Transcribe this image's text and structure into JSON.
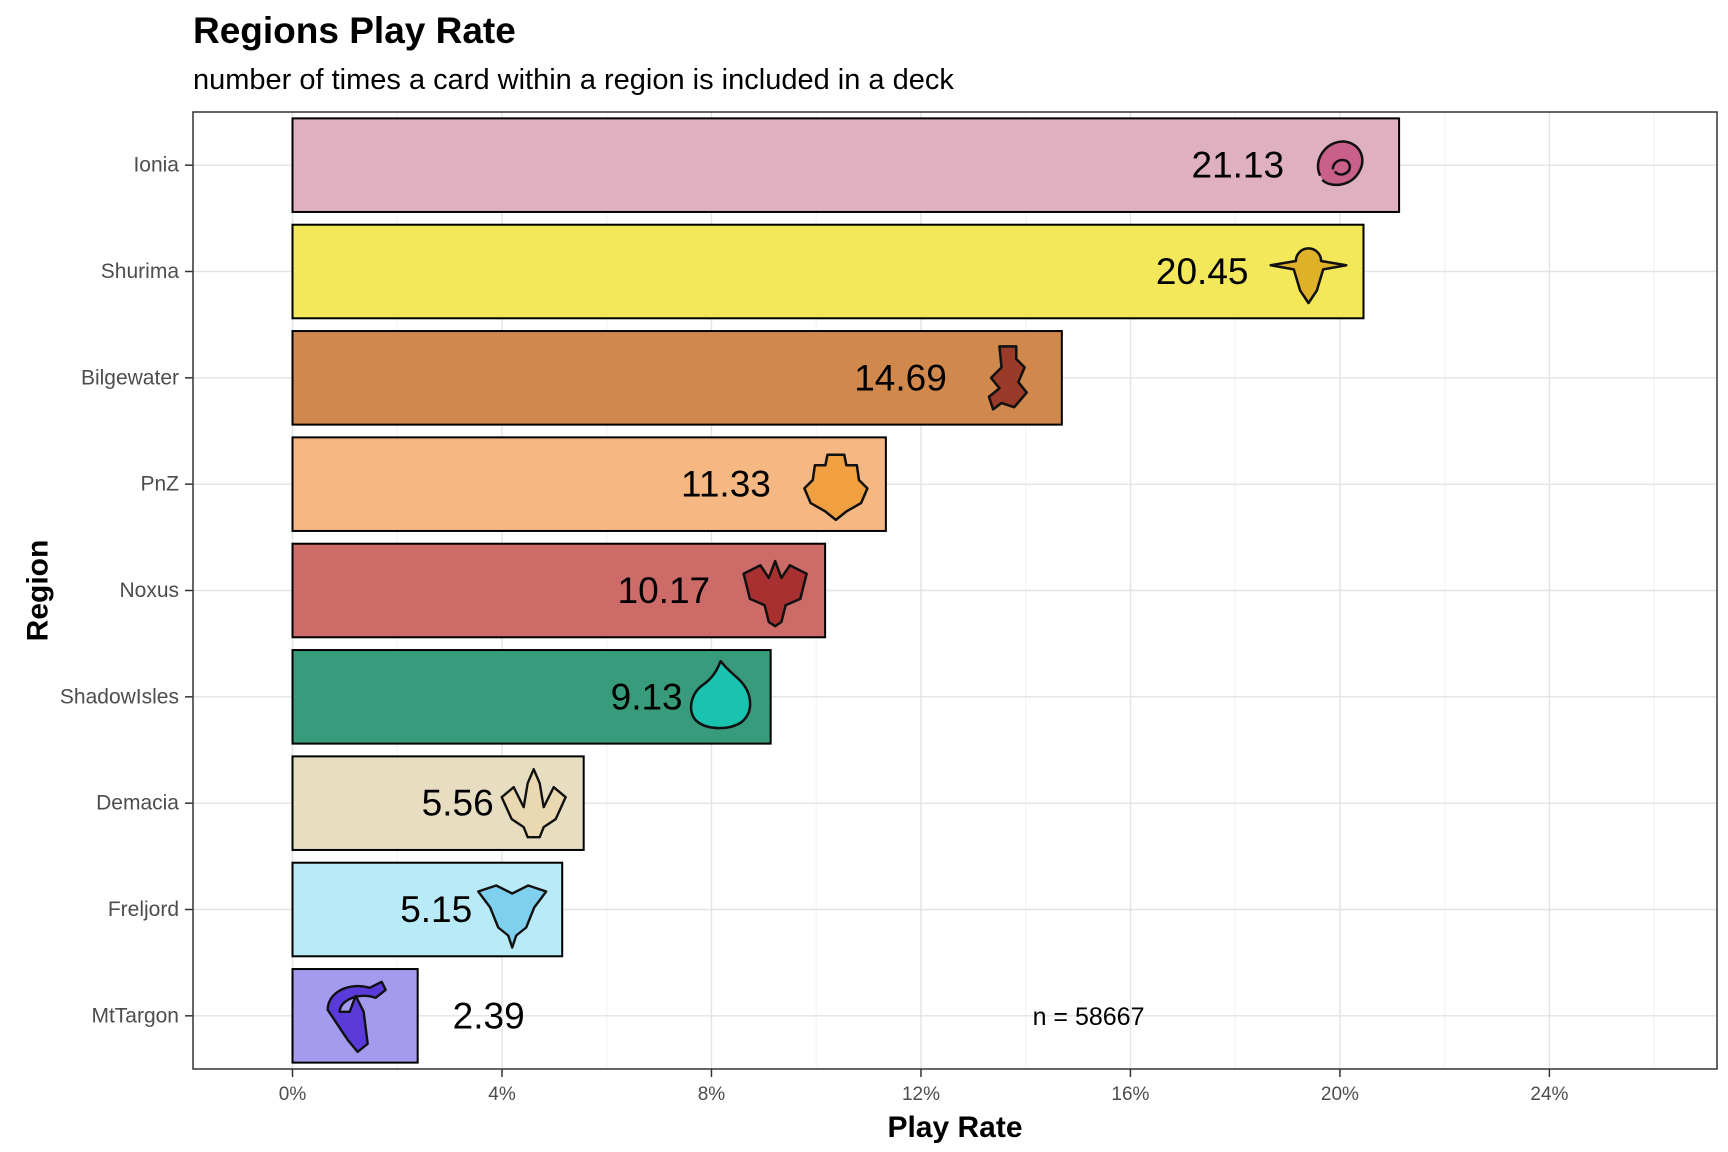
{
  "chart_data": {
    "type": "bar",
    "orientation": "horizontal",
    "title": "Regions Play Rate",
    "subtitle": "number of times a card within a region is included in a deck",
    "xlabel": "Play Rate",
    "ylabel": "Region",
    "categories": [
      "Ionia",
      "Shurima",
      "Bilgewater",
      "PnZ",
      "Noxus",
      "ShadowIsles",
      "Demacia",
      "Freljord",
      "MtTargon"
    ],
    "values": [
      21.13,
      20.45,
      14.69,
      11.33,
      10.17,
      9.13,
      5.56,
      5.15,
      2.39
    ],
    "value_labels": [
      "21.13",
      "20.45",
      "14.69",
      "11.33",
      "10.17",
      "9.13",
      "5.56",
      "5.15",
      "2.39"
    ],
    "colors": [
      "#dfb0c0",
      "#f2e85a",
      "#d0884c",
      "#f5b883",
      "#cd6b69",
      "#379b7c",
      "#e7dec1",
      "#b9eaf7",
      "#a49bee"
    ],
    "icons": [
      "ionia-emblem-icon",
      "shurima-emblem-icon",
      "bilgewater-emblem-icon",
      "pnz-emblem-icon",
      "noxus-emblem-icon",
      "shadowisles-emblem-icon",
      "demacia-emblem-icon",
      "freljord-emblem-icon",
      "mttargon-emblem-icon"
    ],
    "icon_colors": [
      "#c8608a",
      "#e0b22a",
      "#9a3b2a",
      "#f0a040",
      "#a93030",
      "#19c3b0",
      "#e9d8b0",
      "#7fd0ef",
      "#5a3ad8"
    ],
    "xlim": [
      -1.9,
      27.2
    ],
    "x_ticks": [
      0,
      4,
      8,
      12,
      16,
      20,
      24
    ],
    "x_tick_labels": [
      "0%",
      "4%",
      "8%",
      "12%",
      "16%",
      "20%",
      "24%"
    ],
    "grid": true,
    "annotation": "n = 58667"
  }
}
